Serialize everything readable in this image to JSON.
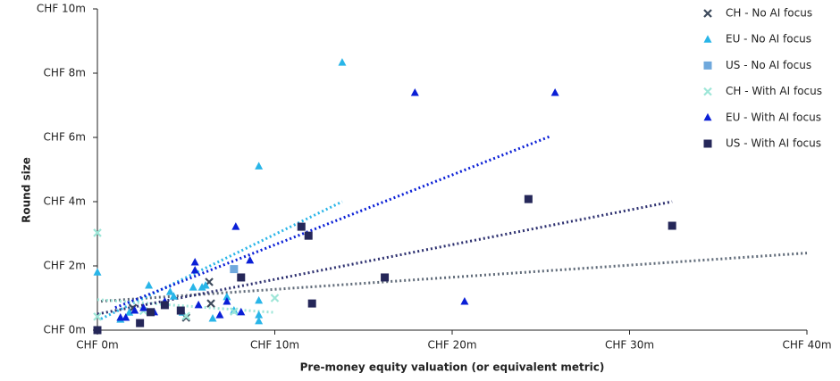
{
  "chart_data": {
    "type": "scatter",
    "xlabel": "Pre-money equity valuation (or equivalent metric)",
    "ylabel": "Round size",
    "xlim": [
      0,
      40
    ],
    "ylim": [
      0,
      10
    ],
    "xticks": [
      {
        "value": 0,
        "label": "CHF 0m"
      },
      {
        "value": 10,
        "label": "CHF 10m"
      },
      {
        "value": 20,
        "label": "CHF 20m"
      },
      {
        "value": 30,
        "label": "CHF 30m"
      },
      {
        "value": 40,
        "label": "CHF 40m"
      }
    ],
    "yticks": [
      {
        "value": 0,
        "label": "CHF 0m"
      },
      {
        "value": 2,
        "label": "CHF 2m"
      },
      {
        "value": 4,
        "label": "CHF 4m"
      },
      {
        "value": 6,
        "label": "CHF 6m"
      },
      {
        "value": 8,
        "label": "CHF 8m"
      },
      {
        "value": 10,
        "label": "CHF 10m"
      }
    ],
    "legend": "top-right",
    "series": [
      {
        "name": "CH - No AI focus",
        "color": "#3d4a5c",
        "marker": "x",
        "x": [
          2.0,
          5.0,
          6.3,
          6.4
        ],
        "values": [
          0.69,
          0.39,
          1.5,
          0.83
        ],
        "trendline": {
          "x": [
            0.2,
            40
          ],
          "values": [
            0.9,
            2.4
          ],
          "color": "#5f6a78"
        }
      },
      {
        "name": "EU - No AI focus",
        "color": "#29b5e8",
        "marker": "triangle",
        "x": [
          0,
          13.8,
          9.1,
          2.9,
          4.3,
          4.8,
          5.4,
          5.9,
          6.5,
          7.3,
          7.7,
          9.1,
          9.1,
          9.1,
          1.8,
          1.3,
          4.1,
          6.1
        ],
        "values": [
          1.8,
          8.33,
          5.1,
          1.39,
          1.05,
          0.55,
          1.33,
          1.33,
          0.36,
          1.03,
          0.61,
          0.47,
          0.28,
          0.92,
          0.55,
          0.33,
          1.19,
          1.39
        ],
        "trendline": {
          "x": [
            0.2,
            13.8
          ],
          "values": [
            0.35,
            4.0
          ],
          "color": "#29b5e8"
        }
      },
      {
        "name": "US - No AI focus",
        "color": "#6fa8dc",
        "marker": "square",
        "x": [
          7.7
        ],
        "values": [
          1.9
        ]
      },
      {
        "name": "CH - With AI focus",
        "color": "#9ee6d8",
        "marker": "x",
        "x": [
          0,
          0,
          10,
          7.7,
          5.0,
          2.6
        ],
        "values": [
          3.03,
          0.42,
          1.0,
          0.58,
          0.44,
          0.6
        ],
        "trendline": {
          "x": [
            0,
            10
          ],
          "values": [
            0.95,
            0.55
          ],
          "color": "#9ee6d8"
        }
      },
      {
        "name": "EU - With AI focus",
        "color": "#0a1fd6",
        "marker": "triangle",
        "x": [
          17.9,
          25.8,
          20.7,
          7.8,
          8.6,
          5.5,
          5.5,
          8.1,
          6.9,
          1.3,
          2.1,
          2.6,
          3.2,
          3.8,
          5.7,
          7.3,
          1.6
        ],
        "values": [
          7.39,
          7.39,
          0.89,
          3.22,
          2.17,
          2.11,
          1.86,
          0.56,
          0.47,
          0.39,
          0.61,
          0.69,
          0.56,
          0.89,
          0.78,
          0.89,
          0.39
        ],
        "trendline": {
          "x": [
            1,
            25.6
          ],
          "values": [
            0.7,
            6.05
          ],
          "color": "#0a1fd6"
        }
      },
      {
        "name": "US - With AI focus",
        "color": "#252759",
        "marker": "square",
        "x": [
          0,
          11.5,
          11.9,
          8.1,
          12.1,
          16.2,
          24.3,
          32.4,
          2.4,
          3.8,
          4.7,
          3.0
        ],
        "values": [
          0,
          3.22,
          2.94,
          1.64,
          0.83,
          1.64,
          4.08,
          3.25,
          0.22,
          0.78,
          0.61,
          0.56
        ],
        "trendline": {
          "x": [
            0,
            32.4
          ],
          "values": [
            0.5,
            4.0
          ],
          "color": "#2e3170"
        }
      }
    ]
  }
}
